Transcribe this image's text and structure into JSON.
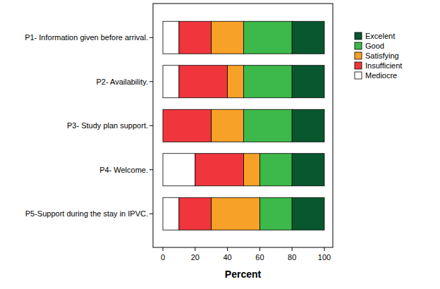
{
  "chart_data": {
    "type": "bar",
    "orientation": "horizontal",
    "stacked": true,
    "xlabel": "Percent",
    "categories": [
      "P1- Information given before arrival.",
      "P2- Availability.",
      "P3- Study plan support.",
      "P4- Welcome.",
      "P5-Support during the stay in IPVC."
    ],
    "series": [
      {
        "name": "Mediocre",
        "color": "#ffffff",
        "values": [
          10,
          10,
          0,
          20,
          10
        ]
      },
      {
        "name": "Insufficient",
        "color": "#f0363c",
        "values": [
          20,
          30,
          30,
          30,
          20
        ]
      },
      {
        "name": "Satisfying",
        "color": "#f7a128",
        "values": [
          20,
          10,
          20,
          10,
          30
        ]
      },
      {
        "name": "Good",
        "color": "#3cb94a",
        "values": [
          30,
          30,
          30,
          20,
          20
        ]
      },
      {
        "name": "Excelent",
        "color": "#08572f",
        "values": [
          20,
          20,
          20,
          20,
          20
        ]
      }
    ],
    "xlim": [
      0,
      100
    ],
    "xticks": [
      0,
      20,
      40,
      60,
      80,
      100
    ],
    "grid": false,
    "legend": "right"
  }
}
